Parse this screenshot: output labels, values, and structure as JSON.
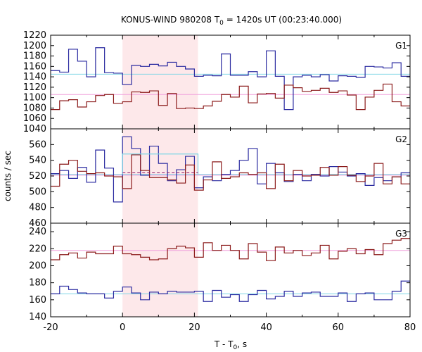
{
  "chart_data": {
    "type": "line",
    "title": "KONUS-WIND 980208 T",
    "title_sub": "0",
    "title_tail": " = 1420s UT (00:23:40.000)",
    "xlabel": "T - T",
    "xlabel_sub": "0",
    "xlabel_tail": ", s",
    "ylabel": "counts / sec",
    "xlim": [
      -20,
      80
    ],
    "xticks": [
      -20,
      0,
      20,
      40,
      60,
      80
    ],
    "highlight": {
      "x_start": 0,
      "x_end": 21,
      "color": "#fde8ea"
    },
    "colors": {
      "g1_blue": "#2a2aa0",
      "g1_red": "#8b1a1a",
      "bg_cyan": "#7fd6e6",
      "bg_pink": "#f0a0dc"
    },
    "panels": [
      {
        "label": "G1",
        "ylim": [
          1040,
          1220
        ],
        "yticks": [
          1040,
          1060,
          1080,
          1100,
          1120,
          1140,
          1160,
          1180,
          1200,
          1220
        ],
        "x_edges": [
          -20,
          -17.5,
          -15,
          -12.5,
          -10,
          -7.5,
          -5,
          -2.5,
          0,
          2.5,
          5,
          7.5,
          10,
          12.5,
          15,
          17.5,
          20,
          22.5,
          25,
          27.5,
          30,
          32.5,
          35,
          37.5,
          40,
          42.5,
          45,
          47.5,
          50,
          52.5,
          55,
          57.5,
          60,
          62.5,
          65,
          67.5,
          70,
          72.5,
          75,
          77.5,
          80
        ],
        "series": [
          {
            "color": "#2a2aa0",
            "values": [
              1152,
              1149,
              1193,
              1170,
              1140,
              1196,
              1148,
              1147,
              1125,
              1162,
              1160,
              1164,
              1161,
              1168,
              1160,
              1155,
              1141,
              1143,
              1142,
              1184,
              1143,
              1143,
              1150,
              1140,
              1190,
              1141,
              1077,
              1140,
              1143,
              1140,
              1144,
              1132,
              1142,
              1141,
              1139,
              1160,
              1159,
              1157,
              1167,
              1141
            ]
          },
          {
            "color": "#8b1a1a",
            "values": [
              1077,
              1094,
              1096,
              1082,
              1092,
              1104,
              1106,
              1089,
              1092,
              1111,
              1110,
              1113,
              1085,
              1108,
              1079,
              1080,
              1079,
              1084,
              1093,
              1106,
              1101,
              1122,
              1090,
              1107,
              1108,
              1099,
              1124,
              1119,
              1112,
              1114,
              1118,
              1110,
              1113,
              1105,
              1077,
              1101,
              1114,
              1126,
              1092,
              1084
            ]
          }
        ],
        "baselines": [
          {
            "color": "#7fd6e6",
            "value": 1145
          },
          {
            "color": "#f0a0dc",
            "value": 1106
          }
        ]
      },
      {
        "label": "G2",
        "ylim": [
          460,
          580
        ],
        "yticks": [
          460,
          480,
          500,
          520,
          540,
          560
        ],
        "x_edges": [
          -20,
          -17.5,
          -15,
          -12.5,
          -10,
          -7.5,
          -5,
          -2.5,
          0,
          2.5,
          5,
          7.5,
          10,
          12.5,
          15,
          17.5,
          20,
          22.5,
          25,
          27.5,
          30,
          32.5,
          35,
          37.5,
          40,
          42.5,
          45,
          47.5,
          50,
          52.5,
          55,
          57.5,
          60,
          62.5,
          65,
          67.5,
          70,
          72.5,
          75,
          77.5,
          80
        ],
        "series": [
          {
            "color": "#2a2aa0",
            "values": [
              523,
              527,
              517,
              531,
              512,
              553,
              530,
              487,
              570,
              555,
              521,
              558,
              536,
              514,
              528,
              545,
              505,
              519,
              514,
              522,
              527,
              540,
              555,
              510,
              536,
              524,
              513,
              522,
              514,
              522,
              520,
              532,
              525,
              520,
              523,
              508,
              518,
              514,
              519,
              524
            ]
          },
          {
            "color": "#8b1a1a",
            "values": [
              507,
              535,
              540,
              526,
              523,
              524,
              520,
              519,
              504,
              547,
              527,
              518,
              518,
              515,
              511,
              534,
              502,
              515,
              538,
              517,
              519,
              524,
              522,
              524,
              504,
              535,
              514,
              527,
              520,
              521,
              531,
              521,
              532,
              521,
              513,
              520,
              536,
              510,
              519,
              510
            ]
          }
        ],
        "baselines": [
          {
            "color": "#7fd6e6",
            "value": 522
          },
          {
            "color": "#f0a0dc",
            "value": 521
          }
        ],
        "excess": {
          "x_start": 0,
          "x_end": 21,
          "value": 548,
          "dash_value": 524
        }
      },
      {
        "label": "G3",
        "ylim": [
          140,
          250
        ],
        "yticks": [
          140,
          160,
          180,
          200,
          220,
          240
        ],
        "x_edges": [
          -20,
          -17.5,
          -15,
          -12.5,
          -10,
          -7.5,
          -5,
          -2.5,
          0,
          2.5,
          5,
          7.5,
          10,
          12.5,
          15,
          17.5,
          20,
          22.5,
          25,
          27.5,
          30,
          32.5,
          35,
          37.5,
          40,
          42.5,
          45,
          47.5,
          50,
          52.5,
          55,
          57.5,
          60,
          62.5,
          65,
          67.5,
          70,
          72.5,
          75,
          77.5,
          80
        ],
        "series": [
          {
            "color": "#2a2aa0",
            "values": [
              167,
              176,
              172,
              168,
              167,
              167,
              162,
              170,
              175,
              168,
              160,
              169,
              167,
              170,
              169,
              169,
              170,
              158,
              171,
              163,
              166,
              158,
              166,
              171,
              161,
              164,
              170,
              164,
              168,
              169,
              164,
              164,
              168,
              158,
              167,
              168,
              160,
              160,
              170,
              182
            ]
          },
          {
            "color": "#8b1a1a",
            "values": [
              207,
              213,
              215,
              209,
              216,
              214,
              214,
              223,
              214,
              213,
              210,
              207,
              208,
              220,
              223,
              221,
              210,
              227,
              218,
              224,
              218,
              208,
              226,
              216,
              206,
              222,
              215,
              218,
              212,
              215,
              224,
              208,
              217,
              220,
              214,
              219,
              213,
              226,
              230,
              232
            ]
          }
        ],
        "baselines": [
          {
            "color": "#7fd6e6",
            "value": 167
          },
          {
            "color": "#f0a0dc",
            "value": 218
          }
        ]
      }
    ]
  }
}
